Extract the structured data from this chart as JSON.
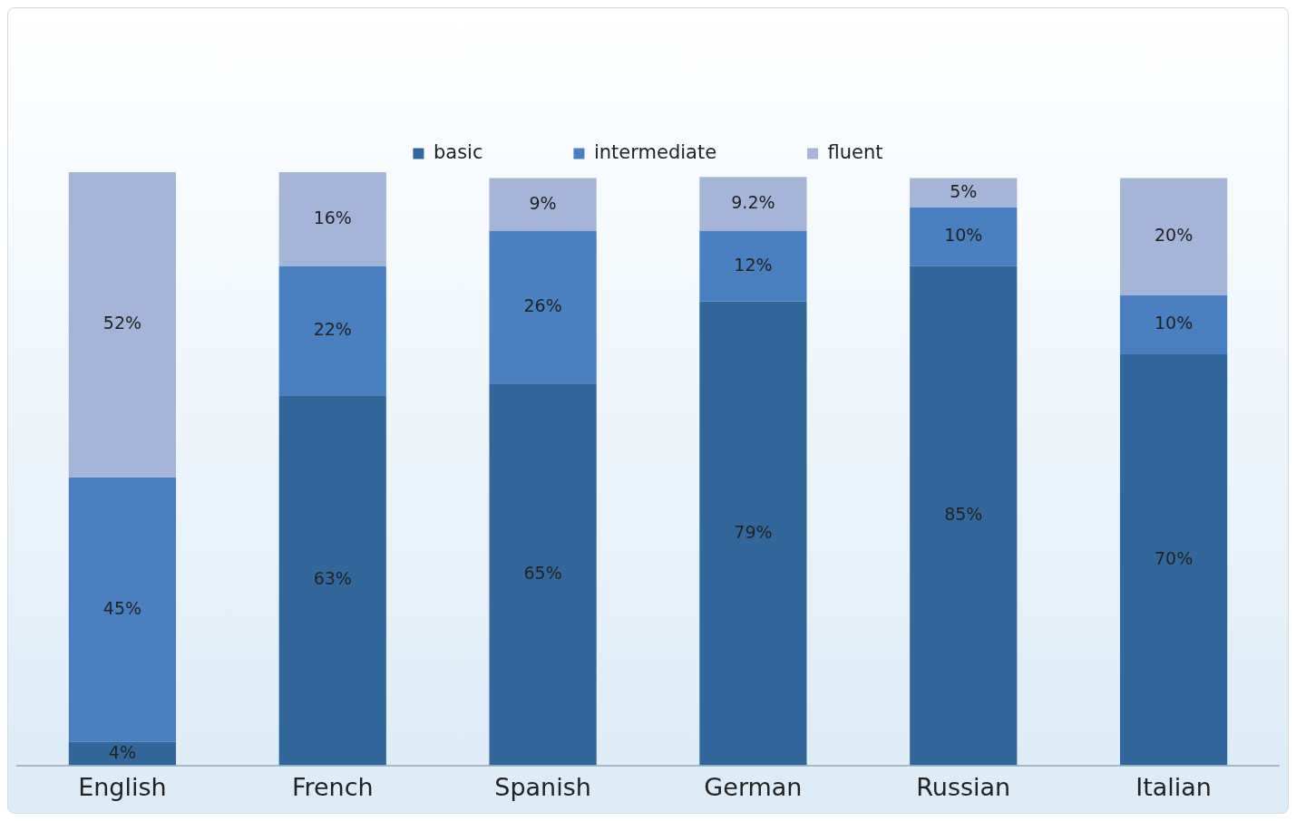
{
  "chart_data": {
    "type": "bar",
    "stacked": true,
    "categories": [
      "English",
      "French",
      "Spanish",
      "German",
      "Russian",
      "Italian"
    ],
    "series": [
      {
        "name": "basic",
        "color": "#33679c",
        "values": [
          4,
          63,
          65,
          79,
          85,
          70
        ],
        "value_labels": [
          "4%",
          "63%",
          "65%",
          "79%",
          "85%",
          "70%"
        ]
      },
      {
        "name": "intermediate",
        "color": "#4a80c2",
        "values": [
          45,
          22,
          26,
          12,
          10,
          10
        ],
        "value_labels": [
          "45%",
          "22%",
          "26%",
          "12%",
          "10%",
          "10%"
        ]
      },
      {
        "name": "fluent",
        "color": "#a5b5d8",
        "values": [
          52,
          16,
          9,
          9.2,
          5,
          20
        ],
        "value_labels": [
          "52%",
          "16%",
          "9%",
          "9.2%",
          "5%",
          "20%"
        ]
      }
    ],
    "ylim": [
      0,
      101
    ],
    "tick_labels": "x",
    "grid": false,
    "legend": "top"
  }
}
